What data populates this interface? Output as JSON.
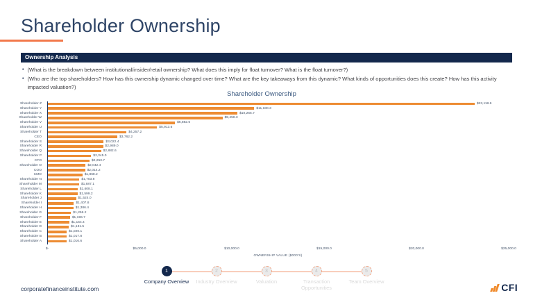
{
  "page": {
    "title": "Shareholder Ownership",
    "footer_url": "corporatefinanceinstitute.com",
    "logo_text": "CFI"
  },
  "panel": {
    "header": "Ownership Analysis",
    "bullets": [
      "(What is the breakdown between institutional/insider/retail ownership? What does this imply for float turnover? What is the float turnover?)",
      "(Who are the top shareholders? How has this ownership dynamic changed over time? What are the key takeaways from this dynamic? What kinds of opportunities does this create? How has this activity impacted valuation?)"
    ]
  },
  "chart_data": {
    "type": "bar",
    "orientation": "horizontal",
    "title": "Shareholder Ownership",
    "xlabel": "OWNERSHIP VALUE ($000'S)",
    "xlim": [
      0,
      25000
    ],
    "x_ticks": [
      "$-",
      "$5,000.0",
      "$10,000.0",
      "$15,000.0",
      "$20,000.0",
      "$25,000.0"
    ],
    "grid": false,
    "bar_color": "#ED8C33",
    "categories": [
      "Shareholder Z",
      "Shareholder Y",
      "Shareholder X",
      "Shareholder W",
      "Shareholder V",
      "Shareholder U",
      "Shareholder T",
      "CEO",
      "Shareholder S",
      "Shareholder R",
      "Shareholder Q",
      "Shareholder P",
      "CFO",
      "Shareholder O",
      "COO",
      "CMO",
      "Shareholder N",
      "Shareholder M",
      "Shareholder L",
      "Shareholder K",
      "Shareholder J",
      "Shareholder I",
      "Shareholder H",
      "Shareholder G",
      "Shareholder F",
      "Shareholder E",
      "Shareholder D",
      "Shareholder C",
      "Shareholder B",
      "Shareholder A"
    ],
    "values": [
      23118.6,
      11180.3,
      10265.7,
      9458.3,
      6882.6,
      5913.6,
      4257.2,
      3762.2,
      3022.4,
      2989.0,
      2882.6,
      2345.0,
      2253.7,
      2042.4,
      2014.2,
      1868.2,
      1703.8,
      1687.1,
      1608.1,
      1599.2,
      1524.0,
      1407.8,
      1386.4,
      1256.2,
      1196.7,
      1154.4,
      1131.5,
      1020.1,
      1017.8,
      1016.6
    ]
  },
  "stepper": {
    "steps": [
      {
        "num": "1",
        "label": "Company Overview",
        "active": true
      },
      {
        "num": "2",
        "label": "Industry Overview",
        "active": false
      },
      {
        "num": "3",
        "label": "Valuation",
        "active": false
      },
      {
        "num": "4",
        "label": "Transaction Opportunities",
        "active": false
      },
      {
        "num": "5",
        "label": "Team Overview",
        "active": false
      }
    ]
  },
  "colors": {
    "navy": "#13284C",
    "title_navy": "#2E4466",
    "chart_text": "#44546A",
    "bar_orange": "#ED8C33",
    "accent_orange": "#F2794B"
  }
}
